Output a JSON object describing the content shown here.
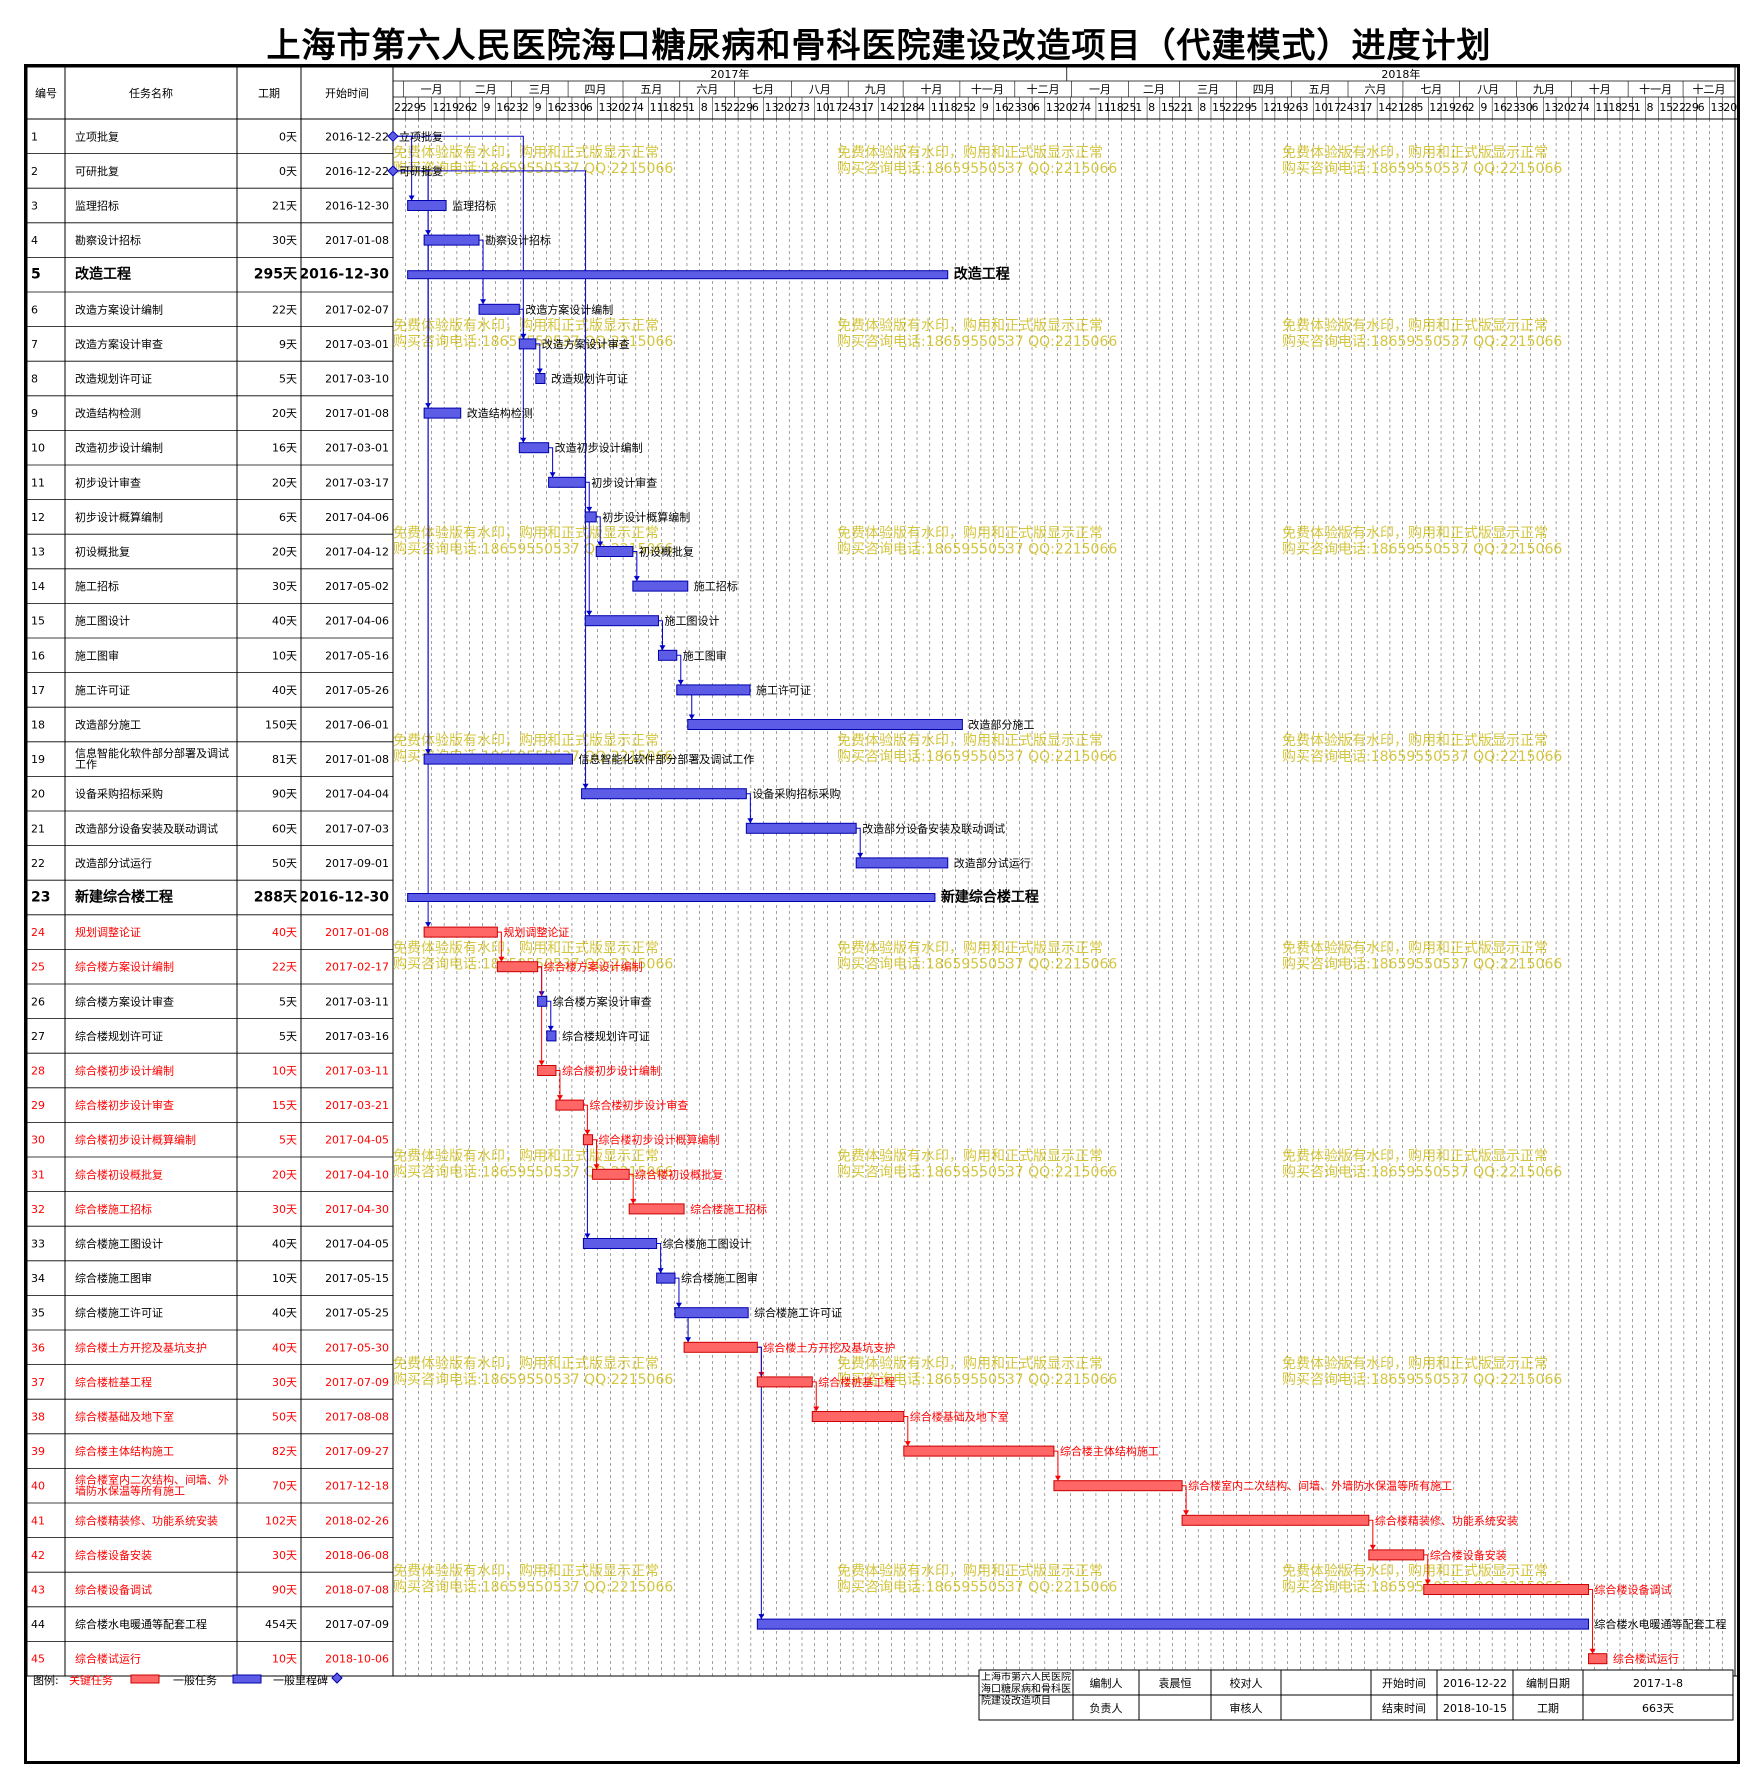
{
  "page": {
    "title": "上海市第六人民医院海口糖尿病和骨科医院建设改造项目（代建模式）进度计划"
  },
  "table_headers": {
    "id": "编号",
    "name": "任务名称",
    "duration": "工期",
    "start": "开始时间"
  },
  "timescale": {
    "years": [
      "2017年",
      "2018年"
    ],
    "months": [
      "一月",
      "二月",
      "三月",
      "四月",
      "五月",
      "六月",
      "七月",
      "八月",
      "九月",
      "十月",
      "十一月",
      "十二月"
    ],
    "day_ticks": [
      "22",
      "29",
      "5",
      "12",
      "19",
      "26",
      "2",
      "9",
      "16",
      "23",
      "2",
      "9",
      "16",
      "23",
      "30",
      "6",
      "13",
      "20",
      "27",
      "4",
      "11",
      "18",
      "25",
      "1",
      "8",
      "15",
      "22",
      "29",
      "6",
      "13",
      "20",
      "27",
      "3",
      "10",
      "17",
      "24",
      "31",
      "7",
      "14",
      "21",
      "28",
      "4",
      "11",
      "18",
      "25",
      "2",
      "9",
      "16",
      "23",
      "30",
      "6",
      "13",
      "20",
      "27",
      "4",
      "11",
      "18",
      "25",
      "1",
      "8",
      "15",
      "22",
      "1",
      "8",
      "15",
      "22",
      "29",
      "5",
      "12",
      "19",
      "26",
      "3",
      "10",
      "17",
      "24",
      "31",
      "7",
      "14",
      "21",
      "28",
      "5",
      "12",
      "19",
      "26",
      "2",
      "9",
      "16",
      "23",
      "30",
      "6",
      "13",
      "20",
      "27",
      "4",
      "11",
      "18",
      "25",
      "1",
      "8",
      "15",
      "22",
      "29",
      "6",
      "13",
      "20"
    ]
  },
  "watermark": {
    "line1": "免费体验版有水印，购用和正式版显示正常",
    "line2": "购买咨询电话:18659550537 QQ:2215066"
  },
  "legend": {
    "label": "图例:",
    "critical": "关键任务",
    "normal": "一般任务",
    "milestone": "一般里程碑"
  },
  "footer": {
    "project_name": "上海市第六人民医院海口糖尿病和骨科医院建设改造项目",
    "editor_label": "编制人",
    "editor": "袁晨恒",
    "checker_label": "校对人",
    "checker": "",
    "start_label": "开始时间",
    "start": "2016-12-22",
    "date_label": "编制日期",
    "date": "2017-1-8",
    "owner_label": "负责人",
    "owner": "",
    "reviewer_label": "审核人",
    "reviewer": "",
    "end_label": "结束时间",
    "end": "2018-10-15",
    "duration_label": "工期",
    "duration": "663天"
  },
  "colors": {
    "normal_bar": "#5c5ce6",
    "critical_bar": "#ff6666",
    "critical_text": "#ff0000",
    "link": "#0000cc",
    "critical_link": "#ff0000",
    "watermark": "#c8b400"
  },
  "chart_data": {
    "type": "gantt",
    "title": "上海市第六人民医院海口糖尿病和骨科医院建设改造项目（代建模式）进度计划",
    "x_range": [
      "2016-12-22",
      "2018-12-25"
    ],
    "tasks": [
      {
        "id": "1",
        "name": "立项批复",
        "duration": "0天",
        "start": "2016-12-22",
        "days": 0,
        "kind": "milestone",
        "label": "立项批复"
      },
      {
        "id": "2",
        "name": "可研批复",
        "duration": "0天",
        "start": "2016-12-22",
        "days": 0,
        "kind": "milestone",
        "label": "可研批复"
      },
      {
        "id": "3",
        "name": "监理招标",
        "duration": "21天",
        "start": "2016-12-30",
        "days": 21,
        "kind": "normal",
        "label": "监理招标"
      },
      {
        "id": "4",
        "name": "勘察设计招标",
        "duration": "30天",
        "start": "2017-01-08",
        "days": 30,
        "kind": "normal",
        "label": "勘察设计招标"
      },
      {
        "id": "5",
        "name": "改造工程",
        "duration": "295天",
        "start": "2016-12-30",
        "days": 295,
        "kind": "summary",
        "label": "改造工程"
      },
      {
        "id": "6",
        "name": "改造方案设计编制",
        "duration": "22天",
        "start": "2017-02-07",
        "days": 22,
        "kind": "normal",
        "label": "改造方案设计编制"
      },
      {
        "id": "7",
        "name": "改造方案设计审查",
        "duration": "9天",
        "start": "2017-03-01",
        "days": 9,
        "kind": "normal",
        "label": "改造方案设计审查"
      },
      {
        "id": "8",
        "name": "改造规划许可证",
        "duration": "5天",
        "start": "2017-03-10",
        "days": 5,
        "kind": "normal",
        "label": "改造规划许可证"
      },
      {
        "id": "9",
        "name": "改造结构检测",
        "duration": "20天",
        "start": "2017-01-08",
        "days": 20,
        "kind": "normal",
        "label": "改造结构检测"
      },
      {
        "id": "10",
        "name": "改造初步设计编制",
        "duration": "16天",
        "start": "2017-03-01",
        "days": 16,
        "kind": "normal",
        "label": "改造初步设计编制"
      },
      {
        "id": "11",
        "name": "初步设计审查",
        "duration": "20天",
        "start": "2017-03-17",
        "days": 20,
        "kind": "normal",
        "label": "初步设计审查"
      },
      {
        "id": "12",
        "name": "初步设计概算编制",
        "duration": "6天",
        "start": "2017-04-06",
        "days": 6,
        "kind": "normal",
        "label": "初步设计概算编制"
      },
      {
        "id": "13",
        "name": "初设概批复",
        "duration": "20天",
        "start": "2017-04-12",
        "days": 20,
        "kind": "normal",
        "label": "初设概批复"
      },
      {
        "id": "14",
        "name": "施工招标",
        "duration": "30天",
        "start": "2017-05-02",
        "days": 30,
        "kind": "normal",
        "label": "施工招标"
      },
      {
        "id": "15",
        "name": "施工图设计",
        "duration": "40天",
        "start": "2017-04-06",
        "days": 40,
        "kind": "normal",
        "label": "施工图设计"
      },
      {
        "id": "16",
        "name": "施工图审",
        "duration": "10天",
        "start": "2017-05-16",
        "days": 10,
        "kind": "normal",
        "label": "施工图审"
      },
      {
        "id": "17",
        "name": "施工许可证",
        "duration": "40天",
        "start": "2017-05-26",
        "days": 40,
        "kind": "normal",
        "label": "施工许可证"
      },
      {
        "id": "18",
        "name": "改造部分施工",
        "duration": "150天",
        "start": "2017-06-01",
        "days": 150,
        "kind": "normal",
        "label": "改造部分施工"
      },
      {
        "id": "19",
        "name": "信息智能化软件部分部署及调试工作",
        "duration": "81天",
        "start": "2017-01-08",
        "days": 81,
        "kind": "normal",
        "label": "信息智能化软件部分部署及调试工作"
      },
      {
        "id": "20",
        "name": "设备采购招标采购",
        "duration": "90天",
        "start": "2017-04-04",
        "days": 90,
        "kind": "normal",
        "label": "设备采购招标采购"
      },
      {
        "id": "21",
        "name": "改造部分设备安装及联动调试",
        "duration": "60天",
        "start": "2017-07-03",
        "days": 60,
        "kind": "normal",
        "label": "改造部分设备安装及联动调试"
      },
      {
        "id": "22",
        "name": "改造部分试运行",
        "duration": "50天",
        "start": "2017-09-01",
        "days": 50,
        "kind": "normal",
        "label": "改造部分试运行"
      },
      {
        "id": "23",
        "name": "新建综合楼工程",
        "duration": "288天",
        "start": "2016-12-30",
        "days": 288,
        "kind": "summary",
        "label": "新建综合楼工程"
      },
      {
        "id": "24",
        "name": "规划调整论证",
        "duration": "40天",
        "start": "2017-01-08",
        "days": 40,
        "kind": "critical",
        "label": "规划调整论证"
      },
      {
        "id": "25",
        "name": "综合楼方案设计编制",
        "duration": "22天",
        "start": "2017-02-17",
        "days": 22,
        "kind": "critical",
        "label": "综合楼方案设计编制"
      },
      {
        "id": "26",
        "name": "综合楼方案设计审查",
        "duration": "5天",
        "start": "2017-03-11",
        "days": 5,
        "kind": "normal",
        "label": "综合楼方案设计审查"
      },
      {
        "id": "27",
        "name": "综合楼规划许可证",
        "duration": "5天",
        "start": "2017-03-16",
        "days": 5,
        "kind": "normal",
        "label": "综合楼规划许可证"
      },
      {
        "id": "28",
        "name": "综合楼初步设计编制",
        "duration": "10天",
        "start": "2017-03-11",
        "days": 10,
        "kind": "critical",
        "label": "综合楼初步设计编制"
      },
      {
        "id": "29",
        "name": "综合楼初步设计审查",
        "duration": "15天",
        "start": "2017-03-21",
        "days": 15,
        "kind": "critical",
        "label": "综合楼初步设计审查"
      },
      {
        "id": "30",
        "name": "综合楼初步设计概算编制",
        "duration": "5天",
        "start": "2017-04-05",
        "days": 5,
        "kind": "critical",
        "label": "综合楼初步设计概算编制"
      },
      {
        "id": "31",
        "name": "综合楼初设概批复",
        "duration": "20天",
        "start": "2017-04-10",
        "days": 20,
        "kind": "critical",
        "label": "综合楼初设概批复"
      },
      {
        "id": "32",
        "name": "综合楼施工招标",
        "duration": "30天",
        "start": "2017-04-30",
        "days": 30,
        "kind": "critical",
        "label": "综合楼施工招标"
      },
      {
        "id": "33",
        "name": "综合楼施工图设计",
        "duration": "40天",
        "start": "2017-04-05",
        "days": 40,
        "kind": "normal",
        "label": "综合楼施工图设计"
      },
      {
        "id": "34",
        "name": "综合楼施工图审",
        "duration": "10天",
        "start": "2017-05-15",
        "days": 10,
        "kind": "normal",
        "label": "综合楼施工图审"
      },
      {
        "id": "35",
        "name": "综合楼施工许可证",
        "duration": "40天",
        "start": "2017-05-25",
        "days": 40,
        "kind": "normal",
        "label": "综合楼施工许可证"
      },
      {
        "id": "36",
        "name": "综合楼土方开挖及基坑支护",
        "duration": "40天",
        "start": "2017-05-30",
        "days": 40,
        "kind": "critical",
        "label": "综合楼土方开挖及基坑支护"
      },
      {
        "id": "37",
        "name": "综合楼桩基工程",
        "duration": "30天",
        "start": "2017-07-09",
        "days": 30,
        "kind": "critical",
        "label": "综合楼桩基工程"
      },
      {
        "id": "38",
        "name": "综合楼基础及地下室",
        "duration": "50天",
        "start": "2017-08-08",
        "days": 50,
        "kind": "critical",
        "label": "综合楼基础及地下室"
      },
      {
        "id": "39",
        "name": "综合楼主体结构施工",
        "duration": "82天",
        "start": "2017-09-27",
        "days": 82,
        "kind": "critical",
        "label": "综合楼主体结构施工"
      },
      {
        "id": "40",
        "name": "综合楼室内二次结构、间墙、外墙防水保温等所有施工",
        "duration": "70天",
        "start": "2017-12-18",
        "days": 70,
        "kind": "critical",
        "label": "综合楼室内二次结构、间墙、外墙防水保温等所有施工"
      },
      {
        "id": "41",
        "name": "综合楼精装修、功能系统安装",
        "duration": "102天",
        "start": "2018-02-26",
        "days": 102,
        "kind": "critical",
        "label": "综合楼精装修、功能系统安装"
      },
      {
        "id": "42",
        "name": "综合楼设备安装",
        "duration": "30天",
        "start": "2018-06-08",
        "days": 30,
        "kind": "critical",
        "label": "综合楼设备安装"
      },
      {
        "id": "43",
        "name": "综合楼设备调试",
        "duration": "90天",
        "start": "2018-07-08",
        "days": 90,
        "kind": "critical",
        "label": "综合楼设备调试"
      },
      {
        "id": "44",
        "name": "综合楼水电暖通等配套工程",
        "duration": "454天",
        "start": "2017-07-09",
        "days": 454,
        "kind": "normal",
        "label": "综合楼水电暖通等配套工程"
      },
      {
        "id": "45",
        "name": "综合楼试运行",
        "duration": "10天",
        "start": "2018-10-06",
        "days": 10,
        "kind": "critical",
        "label": "综合楼试运行"
      }
    ]
  }
}
